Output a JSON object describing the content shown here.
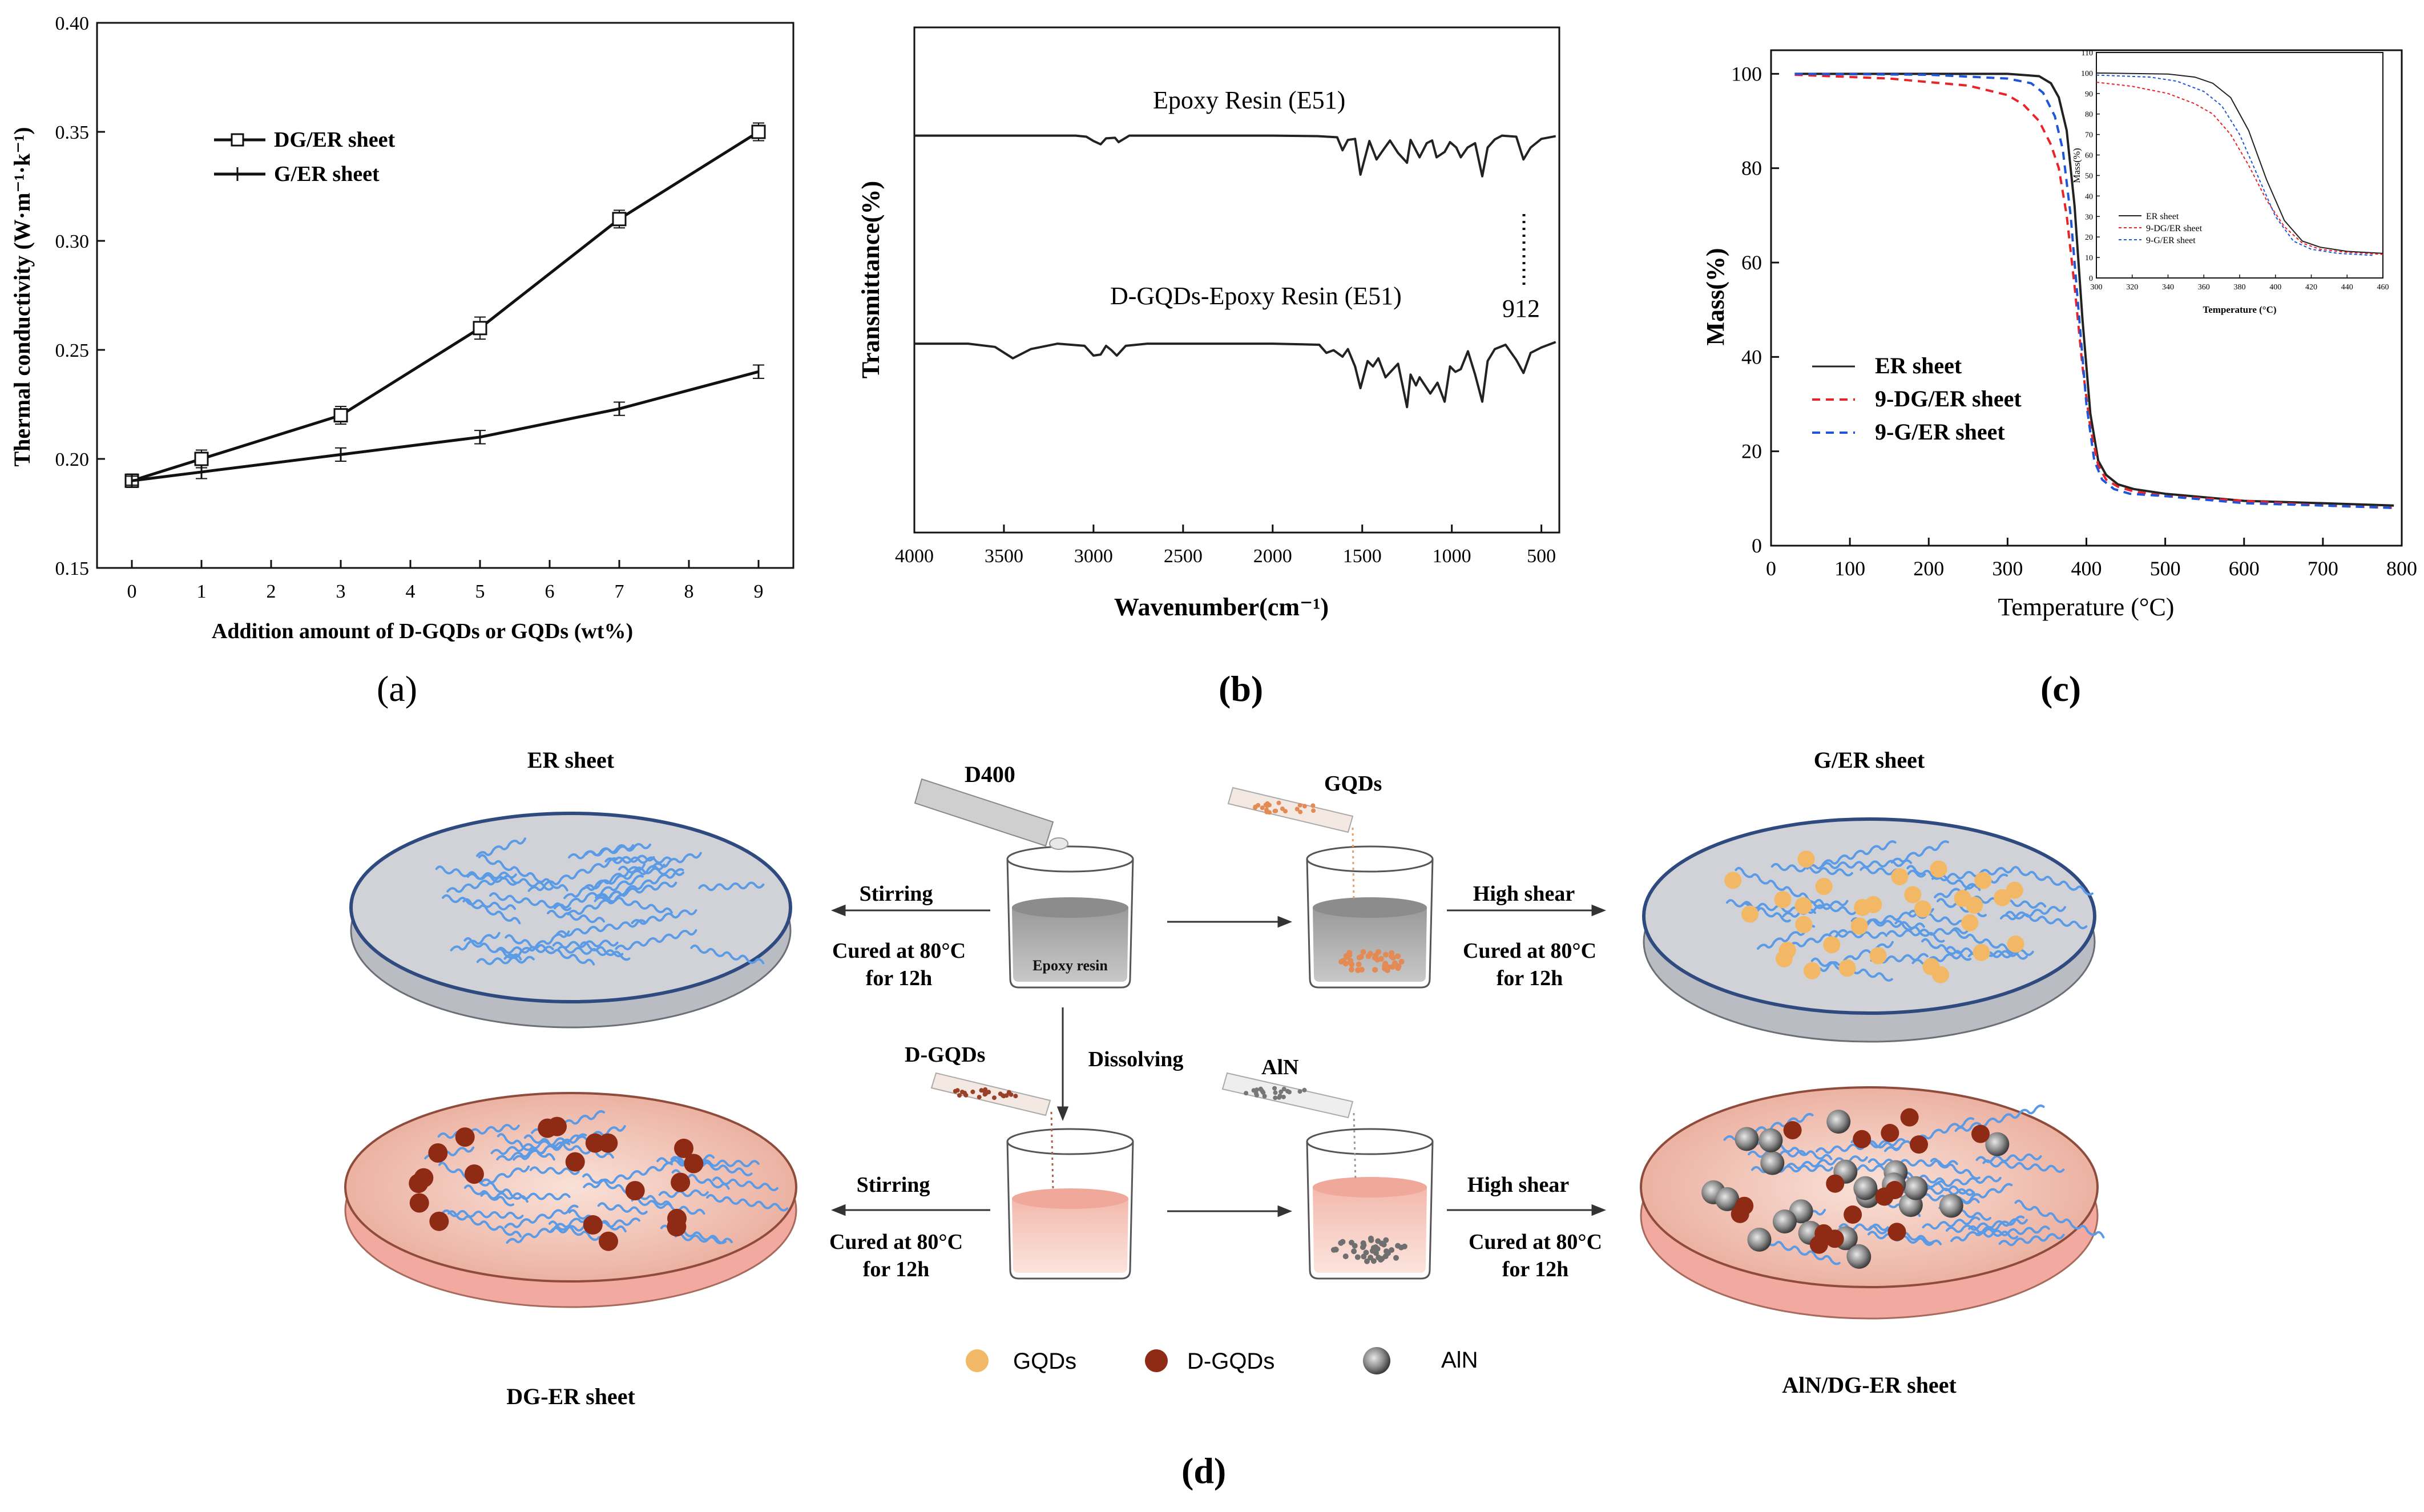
{
  "panel_labels": {
    "a": "(a)",
    "b": "(b)",
    "c": "(c)",
    "d": "(d)"
  },
  "chart_data": [
    {
      "type": "line",
      "title": "",
      "xlabel": "Addition amount of D-GQDs or GQDs (wt%)",
      "ylabel": "Thermal conductivity (W·m⁻¹·k⁻¹)",
      "xlim": [
        -0.5,
        9.5
      ],
      "ylim": [
        0.15,
        0.4
      ],
      "xticks": [
        "0",
        "1",
        "2",
        "3",
        "4",
        "5",
        "6",
        "7",
        "8",
        "9"
      ],
      "yticks": [
        "0.15",
        "0.20",
        "0.25",
        "0.30",
        "0.35",
        "0.40"
      ],
      "x": [
        0,
        1,
        3,
        5,
        7,
        9
      ],
      "series": [
        {
          "name": "DG/ER sheet",
          "values": [
            0.19,
            0.2,
            0.22,
            0.26,
            0.31,
            0.35
          ],
          "errors": [
            0.002,
            0.003,
            0.003,
            0.004,
            0.003,
            0.003
          ],
          "marker": "square"
        },
        {
          "name": "G/ER sheet",
          "values": [
            0.19,
            0.194,
            0.202,
            0.21,
            0.223,
            0.24
          ],
          "errors": [
            0.001,
            0.002,
            0.002,
            0.002,
            0.002,
            0.002
          ],
          "marker": "plus"
        }
      ]
    },
    {
      "type": "line",
      "title": "",
      "xlabel": "Wavenumber(cm⁻¹)",
      "ylabel": "Transmittance(%)",
      "xlim": [
        4000,
        400
      ],
      "xticks": [
        "4000",
        "3500",
        "3000",
        "2500",
        "2000",
        "1500",
        "1000",
        "500"
      ],
      "annotation": "912",
      "series": [
        {
          "name": "Epoxy Resin (E51)",
          "x": [
            4000,
            3500,
            3100,
            3040,
            3000,
            2960,
            2930,
            2880,
            2860,
            2800,
            2500,
            2000,
            1750,
            1640,
            1610,
            1580,
            1540,
            1510,
            1460,
            1420,
            1380,
            1345,
            1300,
            1250,
            1230,
            1180,
            1140,
            1110,
            1085,
            1040,
            1010,
            975,
            950,
            912,
            870,
            830,
            800,
            760,
            720,
            640,
            600,
            560,
            500,
            420
          ],
          "values": [
            8,
            8,
            8,
            10,
            18,
            24,
            13,
            12,
            20,
            8,
            8,
            8,
            9,
            11,
            35,
            16,
            14,
            80,
            18,
            52,
            33,
            17,
            40,
            58,
            16,
            48,
            22,
            17,
            48,
            38,
            20,
            30,
            48,
            30,
            22,
            83,
            30,
            15,
            8,
            10,
            52,
            30,
            14,
            9
          ]
        },
        {
          "name": "D-GQDs-Epoxy Resin (E51)",
          "x": [
            4000,
            3700,
            3550,
            3450,
            3350,
            3200,
            3050,
            3000,
            2960,
            2930,
            2900,
            2870,
            2820,
            2700,
            2000,
            1740,
            1700,
            1660,
            1610,
            1580,
            1540,
            1510,
            1470,
            1440,
            1410,
            1370,
            1300,
            1250,
            1230,
            1200,
            1180,
            1120,
            1080,
            1040,
            1010,
            980,
            950,
            910,
            870,
            830,
            800,
            760,
            700,
            640,
            600,
            560,
            500,
            420
          ],
          "values": [
            18,
            18,
            24,
            45,
            28,
            18,
            22,
            40,
            38,
            22,
            30,
            40,
            22,
            18,
            18,
            20,
            35,
            30,
            42,
            28,
            60,
            100,
            50,
            60,
            45,
            80,
            55,
            135,
            75,
            95,
            80,
            110,
            90,
            125,
            60,
            70,
            65,
            32,
            75,
            125,
            50,
            28,
            20,
            48,
            72,
            35,
            25,
            15
          ]
        }
      ]
    },
    {
      "type": "line",
      "title": "",
      "xlabel": "Temperature (°C)",
      "ylabel": "Mass(%)",
      "xlim": [
        0,
        800
      ],
      "ylim": [
        0,
        105
      ],
      "xticks": [
        "0",
        "100",
        "200",
        "300",
        "400",
        "500",
        "600",
        "700",
        "800"
      ],
      "yticks": [
        "0",
        "20",
        "40",
        "60",
        "80",
        "100"
      ],
      "series": [
        {
          "name": "ER sheet",
          "style": "solid",
          "color": "#222222",
          "x": [
            30,
            200,
            300,
            340,
            355,
            365,
            375,
            385,
            395,
            405,
            415,
            425,
            440,
            460,
            500,
            600,
            700,
            790
          ],
          "values": [
            100,
            100,
            100,
            99.5,
            98,
            95,
            88,
            72,
            48,
            28,
            18,
            15,
            13,
            12,
            11,
            9.5,
            9,
            8.5
          ]
        },
        {
          "name": "9-DG/ER sheet",
          "style": "dashed",
          "color": "#e8232a",
          "x": [
            30,
            150,
            250,
            300,
            320,
            340,
            355,
            365,
            375,
            385,
            395,
            405,
            415,
            425,
            440,
            460,
            500,
            600,
            700,
            790
          ],
          "values": [
            99.8,
            99,
            97.5,
            95.5,
            93.5,
            90,
            85,
            80,
            70,
            55,
            38,
            25,
            17,
            14,
            12.5,
            11.5,
            10.5,
            9.5,
            8.5,
            8
          ]
        },
        {
          "name": "9-G/ER sheet",
          "style": "dashed",
          "color": "#1f55d8",
          "x": [
            30,
            200,
            300,
            330,
            345,
            360,
            370,
            380,
            390,
            400,
            410,
            420,
            435,
            455,
            500,
            600,
            700,
            790
          ],
          "values": [
            100,
            99.8,
            99,
            98,
            96,
            91,
            84,
            70,
            50,
            30,
            18,
            14,
            12,
            11,
            10.5,
            9,
            8.5,
            8
          ]
        }
      ],
      "inset": {
        "xlabel": "Temperature (°C)",
        "ylabel": "Mass(%)",
        "xlim": [
          300,
          460
        ],
        "ylim": [
          0,
          110
        ],
        "xticks": [
          "300",
          "320",
          "340",
          "360",
          "380",
          "400",
          "420",
          "440",
          "460"
        ],
        "yticks": [
          "0",
          "10",
          "20",
          "30",
          "40",
          "50",
          "60",
          "70",
          "80",
          "90",
          "100",
          "110"
        ]
      }
    }
  ],
  "schematic": {
    "plates": {
      "er": "ER sheet",
      "ger": "G/ER sheet",
      "dger": "DG-ER sheet",
      "alndger": "AlN/DG-ER sheet"
    },
    "reagents": {
      "d400": "D400",
      "gqds": "GQDs",
      "dgqds": "D-GQDs",
      "aln": "AlN"
    },
    "beaker_label": "Epoxy resin",
    "steps": {
      "stirring": "Stirring",
      "high_shear": "High shear",
      "cured_line1": "Cured at 80°C",
      "cured_line2": "for 12h",
      "dissolving": "Dissolving"
    },
    "legend": {
      "gqds": "GQDs",
      "dgqds": "D-GQDs",
      "aln": "AlN"
    },
    "colors": {
      "gqd": "#f2b866",
      "dgqd": "#8f2a14",
      "aln": "#8a8a8a",
      "chain": "#5b9be6",
      "plate_gray": "#c9cbd0",
      "plate_pink": "#f3c1b3"
    }
  }
}
